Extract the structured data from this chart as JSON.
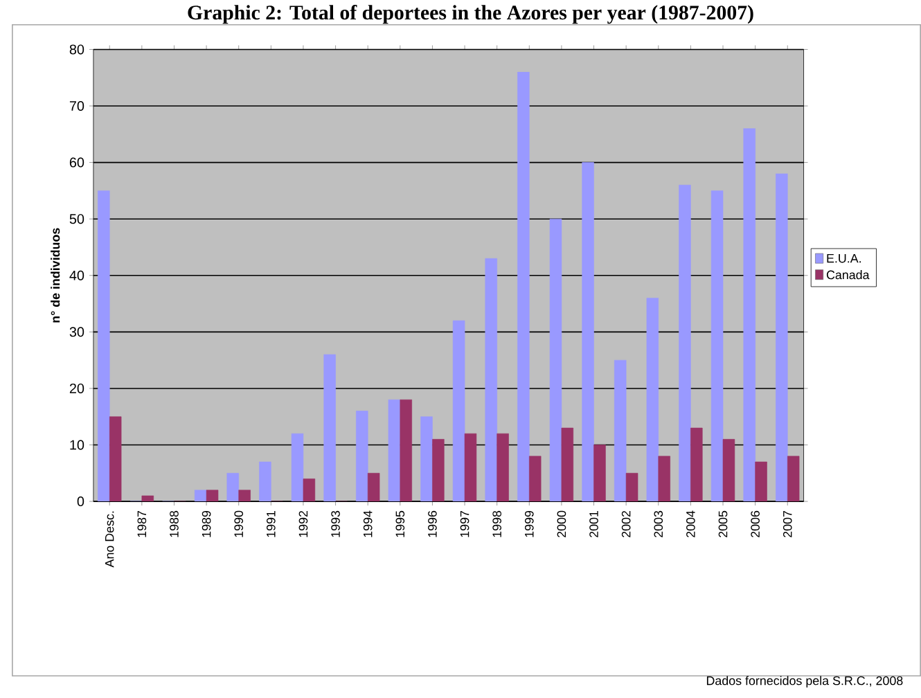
{
  "chart_data": {
    "type": "bar",
    "title": "Graphic 2: Total of deportees in the Azores per year (1987-2007)",
    "ylabel": "n° de individuos",
    "categories": [
      "Ano Desc.",
      "1987",
      "1988",
      "1989",
      "1990",
      "1991",
      "1992",
      "1993",
      "1994",
      "1995",
      "1996",
      "1997",
      "1998",
      "1999",
      "2000",
      "2001",
      "2002",
      "2003",
      "2004",
      "2005",
      "2006",
      "2007"
    ],
    "series": [
      {
        "name": "E.U.A.",
        "color": "#9999ff",
        "values": [
          55,
          0,
          0,
          2,
          5,
          7,
          12,
          26,
          16,
          18,
          15,
          32,
          43,
          76,
          50,
          60,
          25,
          36,
          56,
          55,
          66,
          58
        ]
      },
      {
        "name": "Canada",
        "color": "#993366",
        "values": [
          15,
          1,
          0,
          2,
          2,
          0,
          4,
          0,
          5,
          18,
          11,
          12,
          12,
          8,
          13,
          10,
          5,
          8,
          13,
          11,
          7,
          8
        ]
      }
    ],
    "ylim": [
      0,
      80
    ],
    "yticks": [
      0,
      10,
      20,
      30,
      40,
      50,
      60,
      70,
      80
    ],
    "grid": "y",
    "legend": "right",
    "annotations": [
      "Dados fornecidos pela S.R.C., 2008"
    ]
  }
}
